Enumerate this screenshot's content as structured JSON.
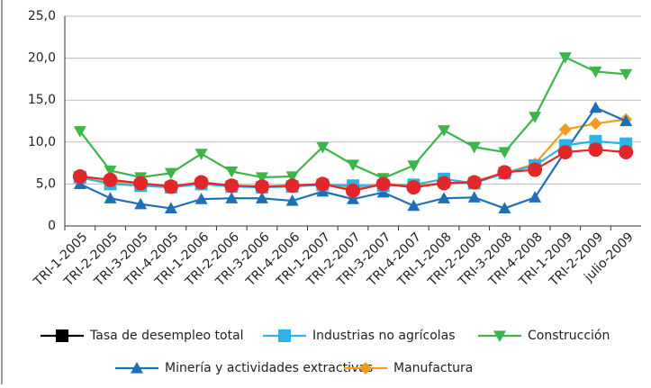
{
  "chart_data": {
    "type": "line",
    "categories": [
      "TRI-1-2005",
      "TRI-2-2005",
      "TRI-3-2005",
      "TRI-4-2005",
      "TRI-1-2006",
      "TRI-2-2006",
      "TRI-3-2006",
      "TRI-4-2006",
      "TRI-1-2007",
      "TRI-2-2007",
      "TRI-3-2007",
      "TRI-4-2007",
      "TRI-1-2008",
      "TRI-2-2008",
      "TRI-3-2008",
      "TRI-4-2008",
      "TRI-1-2009",
      "TRI-2-2009",
      "julio-2009"
    ],
    "series": [
      {
        "name": "Tasa de desempleo total",
        "color": "#e3262a",
        "legend_color": "#000000",
        "marker": "circle",
        "legend_marker": "square",
        "values": [
          5.9,
          5.5,
          5.1,
          4.7,
          5.2,
          4.8,
          4.7,
          4.8,
          5.0,
          4.2,
          5.0,
          4.6,
          5.1,
          5.2,
          6.4,
          6.7,
          8.8,
          9.1,
          8.8
        ]
      },
      {
        "name": "Industrias no agrícolas",
        "color": "#29b5ea",
        "marker": "square",
        "values": [
          5.8,
          5.0,
          4.8,
          4.6,
          5.0,
          4.7,
          4.6,
          4.7,
          4.9,
          4.8,
          4.8,
          4.9,
          5.6,
          5.1,
          6.3,
          7.2,
          9.6,
          10.1,
          9.8
        ]
      },
      {
        "name": "Construcción",
        "color": "#3cb54a",
        "marker": "triangle-down",
        "values": [
          11.3,
          6.6,
          5.8,
          6.3,
          8.6,
          6.5,
          5.8,
          5.9,
          9.4,
          7.3,
          5.7,
          7.2,
          11.4,
          9.4,
          8.8,
          13.0,
          20.1,
          18.4,
          18.1
        ]
      },
      {
        "name": "Minería y actividades extractivas",
        "color": "#1f6fb8",
        "marker": "triangle-up",
        "values": [
          5.0,
          3.3,
          2.6,
          2.1,
          3.2,
          3.3,
          3.3,
          3.0,
          4.1,
          3.2,
          4.0,
          2.4,
          3.3,
          3.4,
          2.1,
          3.4,
          8.9,
          14.1,
          12.5
        ]
      },
      {
        "name": "Manufactura",
        "color": "#f39c1f",
        "marker": "diamond",
        "values": [
          5.7,
          5.2,
          5.0,
          4.7,
          5.2,
          4.8,
          4.7,
          4.8,
          5.0,
          4.5,
          5.0,
          4.8,
          5.1,
          5.3,
          6.3,
          7.4,
          11.5,
          12.2,
          12.7
        ]
      }
    ],
    "ylim": [
      0,
      25
    ],
    "yticks": [
      0,
      {
        "value": 5,
        "label": "5,0"
      },
      {
        "value": 10,
        "label": "10,0"
      },
      {
        "value": 15,
        "label": "15,0"
      },
      {
        "value": 20,
        "label": "20,0"
      },
      {
        "value": 25,
        "label": "25,0"
      }
    ],
    "grid": true
  }
}
